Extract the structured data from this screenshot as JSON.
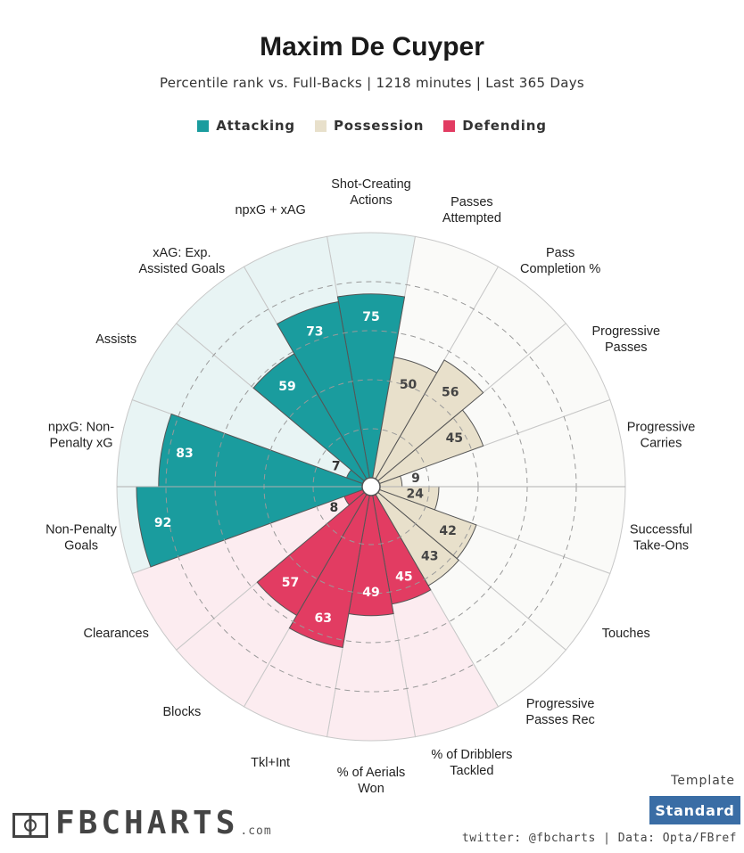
{
  "header": {
    "title": "Maxim De Cuyper",
    "subtitle": "Percentile rank vs. Full-Backs | 1218 minutes | Last 365 Days"
  },
  "legend": [
    {
      "label": "Attacking",
      "color": "#1a9c9e"
    },
    {
      "label": "Possession",
      "color": "#e8e0cb"
    },
    {
      "label": "Defending",
      "color": "#e23c62"
    }
  ],
  "chart_data": {
    "type": "radar-bar",
    "scale": [
      0,
      100
    ],
    "grid_rings": [
      20,
      40,
      60,
      80
    ],
    "categories": [
      {
        "label": [
          "Shot-Creating",
          "Actions"
        ],
        "group": "Attacking",
        "value": 75
      },
      {
        "label": [
          "Passes",
          "Attempted"
        ],
        "group": "Possession",
        "value": 50
      },
      {
        "label": [
          "Pass",
          "Completion %"
        ],
        "group": "Possession",
        "value": 56
      },
      {
        "label": [
          "Progressive",
          "Passes"
        ],
        "group": "Possession",
        "value": 45
      },
      {
        "label": [
          "Progressive",
          "Carries"
        ],
        "group": "Possession",
        "value": 9
      },
      {
        "label": [
          "Successful",
          "Take-Ons"
        ],
        "group": "Possession",
        "value": 24
      },
      {
        "label": [
          "Touches"
        ],
        "group": "Possession",
        "value": 42
      },
      {
        "label": [
          "Progressive",
          "Passes Rec"
        ],
        "group": "Possession",
        "value": 43
      },
      {
        "label": [
          "% of Dribblers",
          "Tackled"
        ],
        "group": "Defending",
        "value": 45
      },
      {
        "label": [
          "% of Aerials",
          "Won"
        ],
        "group": "Defending",
        "value": 49
      },
      {
        "label": [
          "Tkl+Int"
        ],
        "group": "Defending",
        "value": 63
      },
      {
        "label": [
          "Blocks"
        ],
        "group": "Defending",
        "value": 57
      },
      {
        "label": [
          "Clearances"
        ],
        "group": "Defending",
        "value": 8
      },
      {
        "label": [
          "Non-Penalty",
          "Goals"
        ],
        "group": "Attacking",
        "value": 92
      },
      {
        "label": [
          "npxG: Non-",
          "Penalty xG"
        ],
        "group": "Attacking",
        "value": 83
      },
      {
        "label": [
          "Assists"
        ],
        "group": "Attacking",
        "value": 7
      },
      {
        "label": [
          "xAG: Exp.",
          "Assisted Goals"
        ],
        "group": "Attacking",
        "value": 59
      },
      {
        "label": [
          "npxG + xAG"
        ],
        "group": "Attacking",
        "value": 73
      }
    ],
    "colors": {
      "Attacking": {
        "bar": "#1a9c9e",
        "bg": "#e8f4f4",
        "text": "#ffffff",
        "text_low": "#333333"
      },
      "Possession": {
        "bar": "#e8e0cb",
        "bg": "#fafaf8",
        "text": "#444444",
        "text_low": "#444444"
      },
      "Defending": {
        "bar": "#e23c62",
        "bg": "#fcecf0",
        "text": "#ffffff",
        "text_low": "#333333"
      }
    }
  },
  "footer": {
    "logo_text": "FBCHARTS",
    "logo_suffix": ".com",
    "template_label": "Template",
    "template_button": "Standard",
    "credits": "twitter: @fbcharts | Data: Opta/FBref"
  }
}
